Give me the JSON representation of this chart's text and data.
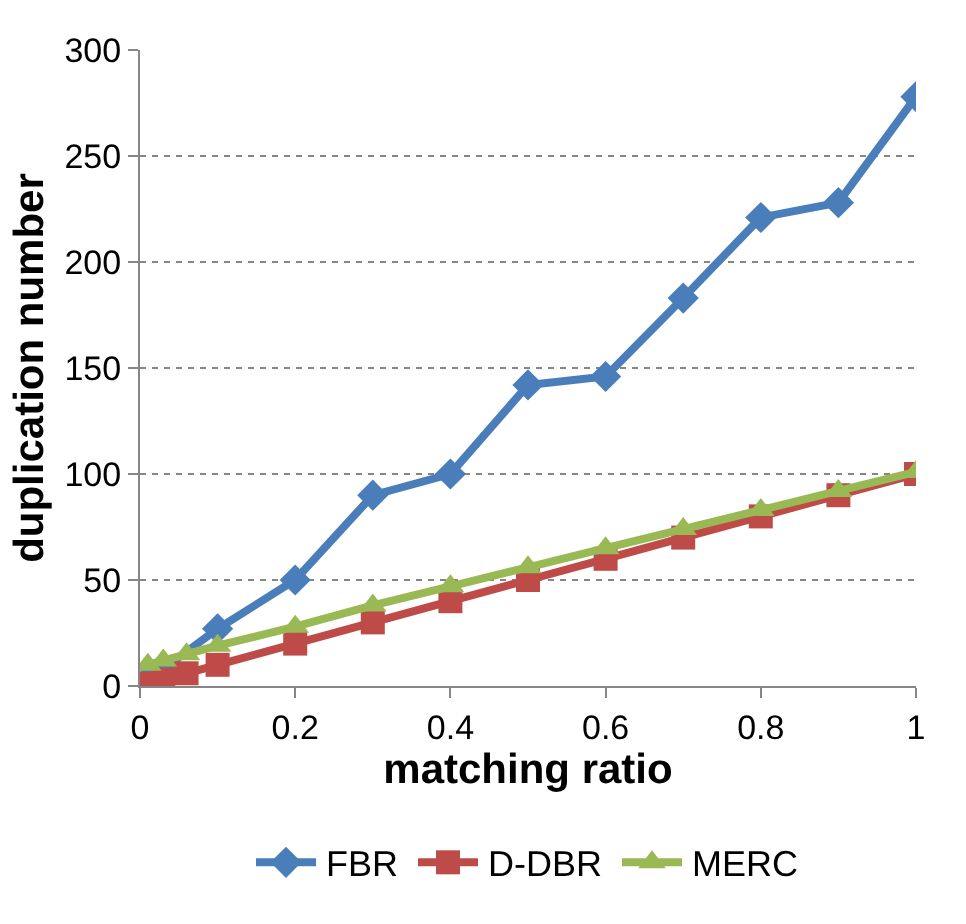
{
  "chart_data": {
    "type": "line",
    "xlabel": "matching ratio",
    "ylabel": "duplication number",
    "x": [
      0.01,
      0.03,
      0.06,
      0.1,
      0.2,
      0.3,
      0.4,
      0.5,
      0.6,
      0.7,
      0.8,
      0.9,
      1.0
    ],
    "series": [
      {
        "name": "FBR",
        "color": "#4a7ebb",
        "marker": "diamond",
        "values": [
          3,
          8,
          null,
          27,
          50,
          90,
          100,
          142,
          146,
          183,
          221,
          228,
          278
        ]
      },
      {
        "name": "D-DBR",
        "color": "#be4b48",
        "marker": "square",
        "values": [
          1,
          3,
          6,
          10,
          20,
          30,
          40,
          50,
          60,
          70,
          80,
          90,
          100
        ]
      },
      {
        "name": "MERC",
        "color": "#98b954",
        "marker": "triangle",
        "values": [
          10,
          12,
          15,
          19,
          28,
          38,
          47,
          56,
          65,
          74,
          83,
          92,
          101
        ]
      }
    ],
    "xlim": [
      0,
      1
    ],
    "xticks": [
      0,
      0.2,
      0.4,
      0.6,
      0.8,
      1
    ],
    "ylim": [
      0,
      300
    ],
    "yticks": [
      0,
      50,
      100,
      150,
      200,
      250,
      300
    ],
    "grid": "y",
    "legend": "bottom",
    "line_style": "solid"
  }
}
